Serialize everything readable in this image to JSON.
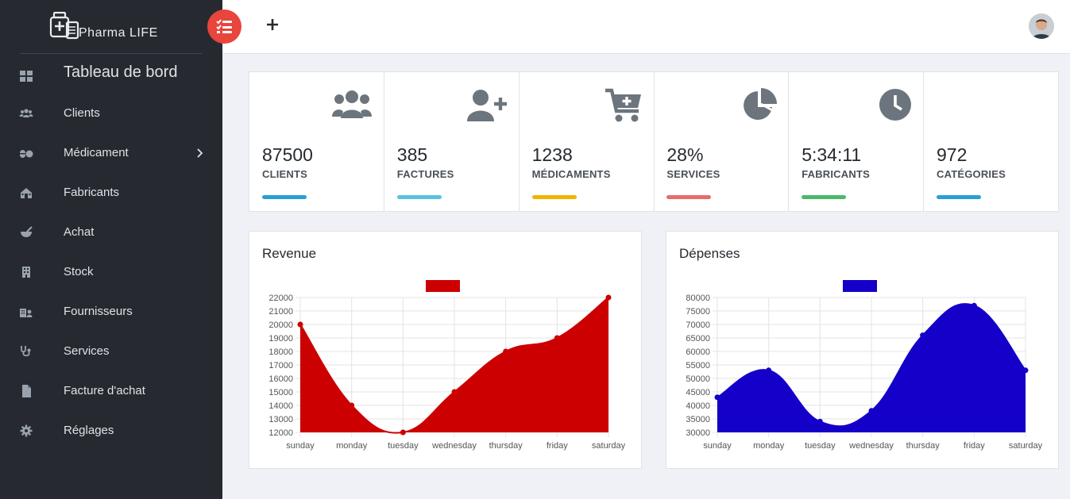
{
  "brand": {
    "name": "Pharma LIFE"
  },
  "sidebar": {
    "items": [
      {
        "label": "Tableau de bord",
        "icon": "dashboard-icon"
      },
      {
        "label": "Clients",
        "icon": "users-icon"
      },
      {
        "label": "Médicament",
        "icon": "pills-icon",
        "has_submenu": true
      },
      {
        "label": "Fabricants",
        "icon": "factory-icon"
      },
      {
        "label": "Achat",
        "icon": "mortar-icon"
      },
      {
        "label": "Stock",
        "icon": "building-icon"
      },
      {
        "label": "Fournisseurs",
        "icon": "supplier-icon"
      },
      {
        "label": "Services",
        "icon": "stethoscope-icon"
      },
      {
        "label": "Facture d'achat",
        "icon": "file-icon"
      },
      {
        "label": "Réglages",
        "icon": "gear-icon"
      }
    ]
  },
  "topbar": {
    "menu_icon": "tasks-icon",
    "add_icon": "plus-icon",
    "avatar_icon": "user-avatar"
  },
  "stats": [
    {
      "value": "87500",
      "label": "CLIENTS",
      "icon": "users-icon",
      "color": "#2a9fd6"
    },
    {
      "value": "385",
      "label": "FACTURES",
      "icon": "user-plus-icon",
      "color": "#5bc0de"
    },
    {
      "value": "1238",
      "label": "MÉDICAMENTS",
      "icon": "cart-plus-icon",
      "color": "#f0b400"
    },
    {
      "value": "28%",
      "label": "SERVICES",
      "icon": "pie-chart-icon",
      "color": "#e86c6c"
    },
    {
      "value": "5:34:11",
      "label": "FABRICANTS",
      "icon": "clock-icon",
      "color": "#4cb86b"
    },
    {
      "value": "972",
      "label": "CATÉGORIES",
      "icon": "",
      "color": "#2a9fd6"
    }
  ],
  "chart_data": [
    {
      "type": "area",
      "title": "Revenue",
      "categories": [
        "sunday",
        "monday",
        "tuesday",
        "wednesday",
        "thursday",
        "friday",
        "saturday"
      ],
      "values": [
        20000,
        14000,
        12000,
        15000,
        18000,
        19000,
        22000
      ],
      "ylim": [
        12000,
        22000
      ],
      "ytick_step": 1000,
      "legend": "top-center",
      "legend_label": "",
      "color": "#cc0000",
      "grid": true
    },
    {
      "type": "area",
      "title": "Dépenses",
      "categories": [
        "sunday",
        "monday",
        "tuesday",
        "wednesday",
        "thursday",
        "friday",
        "saturday"
      ],
      "values": [
        43000,
        53000,
        34000,
        38000,
        66000,
        77000,
        53000
      ],
      "ylim": [
        30000,
        80000
      ],
      "ytick_step": 5000,
      "legend": "top-center",
      "legend_label": "",
      "color": "#1400c8",
      "grid": true
    }
  ]
}
